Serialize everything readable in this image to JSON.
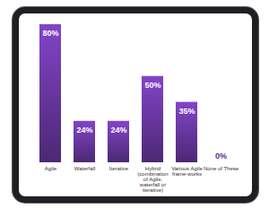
{
  "chart_data": {
    "type": "bar",
    "categories": [
      "Agile",
      "Waterfall",
      "Iterative",
      "Hybrid (combination of Agile, waterfall or iterative)",
      "Various Agile frame-works",
      "None of These"
    ],
    "values": [
      80,
      24,
      24,
      50,
      35,
      0
    ],
    "value_labels": [
      "80%",
      "24%",
      "24%",
      "50%",
      "35%",
      "0%"
    ],
    "color": "#5e3191",
    "data_labels": true,
    "tick_labels": "x"
  }
}
